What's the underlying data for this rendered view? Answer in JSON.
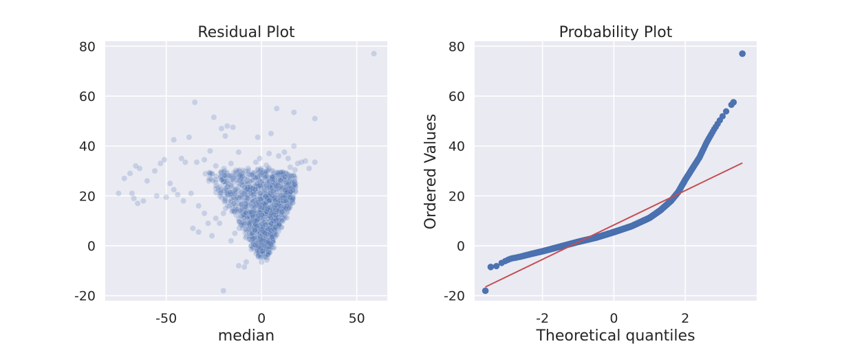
{
  "chart_data": [
    {
      "type": "scatter",
      "title": "Residual Plot",
      "xlabel": "median",
      "ylabel": "",
      "xlim": [
        -82,
        66
      ],
      "ylim": [
        -22,
        82
      ],
      "xticks": [
        -50,
        0,
        50
      ],
      "xtick_labels": [
        "-50",
        "0",
        "50"
      ],
      "yticks": [
        -20,
        0,
        20,
        40,
        60,
        80
      ],
      "ytick_labels": [
        "-20",
        "0",
        "20",
        "40",
        "60",
        "80"
      ],
      "grid": true,
      "point_color": "#4c72b0",
      "point_alpha": 0.22,
      "points": [
        [
          59,
          77
        ],
        [
          -35,
          57.5
        ],
        [
          8,
          55
        ],
        [
          17,
          53.5
        ],
        [
          -25,
          51.5
        ],
        [
          28,
          51
        ],
        [
          -18,
          48
        ],
        [
          -15,
          47.5
        ],
        [
          -21,
          47
        ],
        [
          5,
          45
        ],
        [
          -46,
          42.5
        ],
        [
          -38,
          43.5
        ],
        [
          -19,
          44
        ],
        [
          -2,
          43.5
        ],
        [
          17,
          40
        ],
        [
          12,
          37.5
        ],
        [
          -27,
          38
        ],
        [
          -12,
          37.5
        ],
        [
          -42,
          35
        ],
        [
          -30,
          34.5
        ],
        [
          23,
          34
        ],
        [
          28,
          33.5
        ],
        [
          -51,
          34.5
        ],
        [
          -53,
          33
        ],
        [
          -66,
          32
        ],
        [
          -64,
          31
        ],
        [
          -56,
          30
        ],
        [
          -69,
          29
        ],
        [
          -72,
          27
        ],
        [
          -60,
          26
        ],
        [
          -48,
          25
        ],
        [
          -40,
          33.5
        ],
        [
          -34,
          33.5
        ],
        [
          -24,
          32
        ],
        [
          -16,
          33
        ],
        [
          -7,
          31
        ],
        [
          -3,
          33.5
        ],
        [
          -1,
          35
        ],
        [
          4,
          37
        ],
        [
          9,
          36
        ],
        [
          14,
          35
        ],
        [
          19,
          33
        ],
        [
          21,
          33.5
        ],
        [
          25,
          31
        ],
        [
          -19,
          19
        ],
        [
          -10,
          7
        ],
        [
          -20,
          -18
        ],
        [
          -9,
          -8.5
        ],
        [
          -12,
          -8
        ],
        [
          -8,
          -6.5
        ],
        [
          -68,
          21
        ],
        [
          -75,
          21
        ],
        [
          -67,
          19
        ],
        [
          -62,
          18
        ],
        [
          -65,
          17
        ],
        [
          -55,
          20
        ],
        [
          -50,
          19.5
        ],
        [
          -46,
          22.5
        ],
        [
          -44,
          20.5
        ],
        [
          -41,
          18
        ],
        [
          -37,
          21
        ],
        [
          -33,
          16
        ],
        [
          -30,
          13
        ],
        [
          -28,
          9
        ],
        [
          -33,
          5.5
        ],
        [
          -36,
          7
        ],
        [
          -26,
          4
        ],
        [
          -24,
          11
        ],
        [
          -22,
          9
        ],
        [
          -20,
          13
        ],
        [
          -16,
          2
        ],
        [
          -14,
          5
        ]
      ],
      "cloud": {
        "note": "dense triangular cluster of residuals",
        "vertex": [
          0,
          -4
        ],
        "left_slope_top": [
          -18,
          20
        ],
        "right_edge_top": [
          16,
          26
        ],
        "count": 1400
      }
    },
    {
      "type": "scatter",
      "title": "Probability Plot",
      "xlabel": "Theoretical quantiles",
      "ylabel": "Ordered Values",
      "xlim": [
        -3.9,
        4.0
      ],
      "ylim": [
        -22,
        82
      ],
      "xticks": [
        -2,
        0,
        2
      ],
      "xtick_labels": [
        "-2",
        "0",
        "2"
      ],
      "yticks": [
        -20,
        0,
        20,
        40,
        60,
        80
      ],
      "ytick_labels": [
        "-20",
        "0",
        "20",
        "40",
        "60",
        "80"
      ],
      "grid": true,
      "point_color": "#4c72b0",
      "line_color": "#c44e52",
      "fit_line": [
        [
          -3.6,
          -16.5
        ],
        [
          3.6,
          33.2
        ]
      ],
      "quantile_curve": [
        [
          -3.6,
          -18
        ],
        [
          -3.45,
          -8.5
        ],
        [
          -3.3,
          -8.2
        ],
        [
          -3.1,
          -6.5
        ],
        [
          -2.9,
          -5.2
        ],
        [
          -2.6,
          -4.3
        ],
        [
          -2.3,
          -3.2
        ],
        [
          -2.0,
          -2.2
        ],
        [
          -1.5,
          -0.3
        ],
        [
          -1.0,
          1.6
        ],
        [
          -0.5,
          3.3
        ],
        [
          0.0,
          5.5
        ],
        [
          0.5,
          7.9
        ],
        [
          1.0,
          11.2
        ],
        [
          1.3,
          14.2
        ],
        [
          1.6,
          18.0
        ],
        [
          1.8,
          21.5
        ],
        [
          2.0,
          26.5
        ],
        [
          2.2,
          31.0
        ],
        [
          2.4,
          35.5
        ],
        [
          2.6,
          41.5
        ],
        [
          2.8,
          46.5
        ],
        [
          3.0,
          51.0
        ],
        [
          3.2,
          55.0
        ],
        [
          3.35,
          57.5
        ],
        [
          3.6,
          77
        ]
      ],
      "quantile_points": 3000
    }
  ]
}
